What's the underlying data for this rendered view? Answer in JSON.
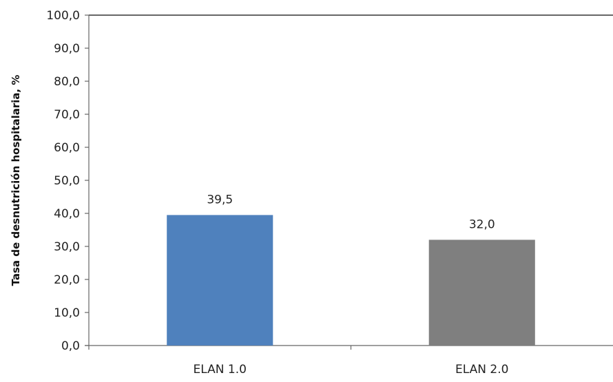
{
  "chart_data": {
    "type": "bar",
    "categories": [
      "ELAN 1.0",
      "ELAN 2.0"
    ],
    "values": [
      39.5,
      32.0
    ],
    "value_labels": [
      "39,5",
      "32,0"
    ],
    "bar_colors": [
      "#4f81bd",
      "#7f7f7f"
    ],
    "ylabel": "Tasa de desnutrición hospitalaria, %",
    "ylim": [
      0,
      100
    ],
    "yticks": [
      0,
      10,
      20,
      30,
      40,
      50,
      60,
      70,
      80,
      90,
      100
    ],
    "ytick_labels": [
      "0,0",
      "10,0",
      "20,0",
      "30,0",
      "40,0",
      "50,0",
      "60,0",
      "70,0",
      "80,0",
      "90,0",
      "100,0"
    ],
    "grid": false,
    "legend": false
  }
}
